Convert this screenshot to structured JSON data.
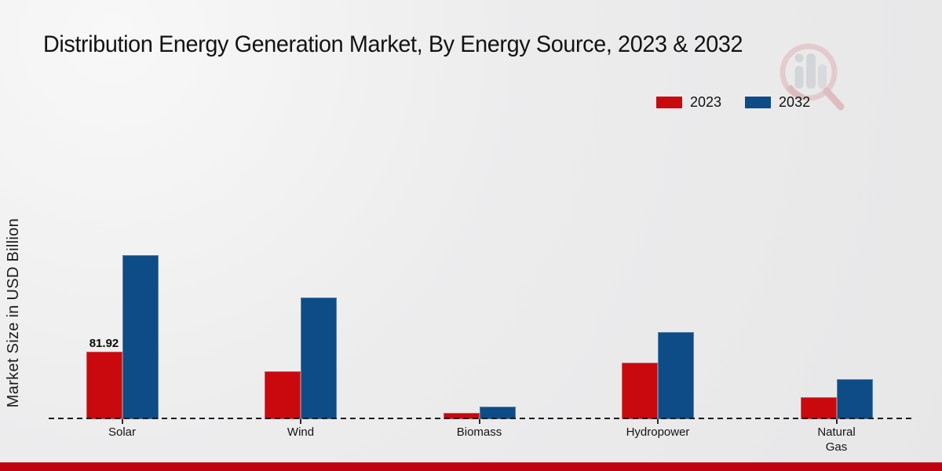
{
  "title": "Distribution Energy Generation Market, By Energy Source, 2023 & 2032",
  "ylabel": "Market Size in USD Billion",
  "legend": [
    {
      "label": "2023",
      "color": "#c9090e"
    },
    {
      "label": "2032",
      "color": "#0d4c86"
    }
  ],
  "chart_data": {
    "type": "bar",
    "title": "Distribution Energy Generation Market, By Energy Source, 2023 & 2032",
    "ylabel": "Market Size in USD Billion",
    "categories": [
      "Solar",
      "Wind",
      "Biomass",
      "Hydropower",
      "Natural Gas"
    ],
    "series": [
      {
        "name": "2023",
        "color": "#c9090e",
        "values": [
          81.92,
          58.2,
          7.6,
          68.2,
          26.5
        ]
      },
      {
        "name": "2032",
        "color": "#0d4c86",
        "values": [
          197.9,
          146.8,
          15.1,
          105.1,
          48.3
        ]
      }
    ],
    "bar_labels": [
      {
        "series_index": 0,
        "category_index": 0,
        "text": "81.92"
      }
    ],
    "ylim": [
      0,
      210
    ],
    "grid": false,
    "y_axis_visible": false,
    "baseline_style": "dashed",
    "legend_position": "top-right"
  },
  "colors": {
    "series_2023": "#c9090e",
    "series_2032": "#0d4c86",
    "footer_bar": "#c10010",
    "background": "#ebebec"
  },
  "logo": {
    "name": "market-research-watermark-logo"
  }
}
